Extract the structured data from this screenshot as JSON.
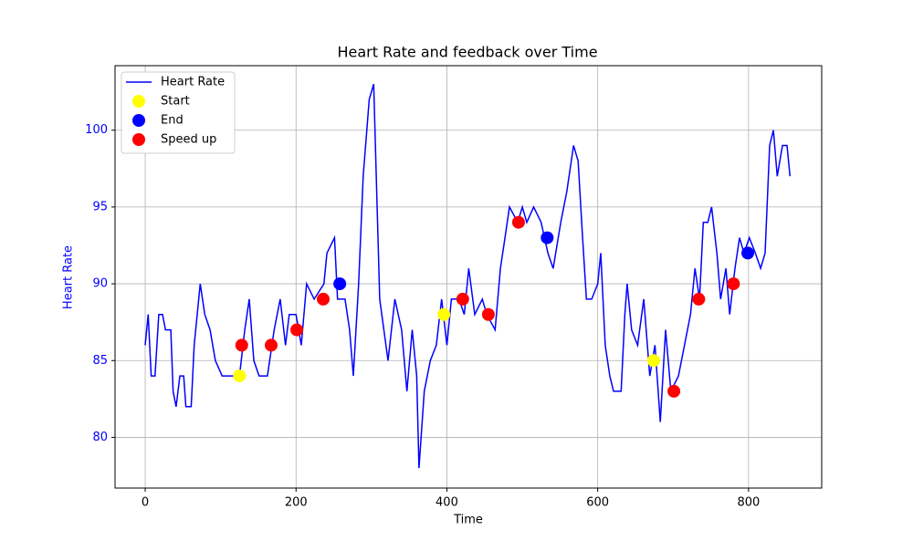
{
  "chart_data": {
    "type": "line",
    "title": "Heart Rate and feedback over Time",
    "x_label": "Time",
    "y_label": "Heart Rate",
    "xlim": [
      -40,
      897
    ],
    "ylim": [
      76.7,
      104.2
    ],
    "xticks": [
      0,
      200,
      400,
      600,
      800
    ],
    "yticks": [
      80,
      85,
      90,
      95,
      100
    ],
    "grid": true,
    "legend": "upper left",
    "y_axis_color": "#0000ff",
    "series": [
      {
        "name": "Heart Rate",
        "type": "line",
        "color": "#0000ff",
        "x": [
          0,
          4,
          8,
          13,
          18,
          23,
          27,
          34,
          37,
          41,
          46,
          51,
          54,
          61,
          65,
          73,
          79,
          86,
          93,
          102,
          116,
          125,
          132,
          138,
          144,
          151,
          162,
          171,
          179,
          186,
          191,
          200,
          207,
          214,
          224,
          237,
          241,
          251,
          255,
          265,
          271,
          276,
          283,
          289,
          297,
          303,
          311,
          322,
          331,
          340,
          347,
          354,
          360,
          363,
          370,
          378,
          386,
          393,
          400,
          406,
          416,
          423,
          429,
          437,
          447,
          453,
          464,
          471,
          477,
          483,
          494,
          500,
          506,
          515,
          525,
          534,
          541,
          551,
          559,
          568,
          574,
          580,
          585,
          592,
          600,
          604,
          610,
          616,
          621,
          631,
          636,
          639,
          645,
          653,
          661,
          669,
          676,
          683,
          690,
          697,
          707,
          715,
          723,
          729,
          735,
          740,
          746,
          751,
          758,
          763,
          770,
          775,
          782,
          788,
          794,
          801,
          809,
          816,
          822,
          828,
          833,
          838,
          845,
          851,
          855
        ],
        "values": [
          86,
          88,
          84,
          84,
          88,
          88,
          87,
          87,
          83,
          82,
          84,
          84,
          82,
          82,
          86,
          90,
          88,
          87,
          85,
          84,
          84,
          84,
          87,
          89,
          85,
          84,
          84,
          87,
          89,
          86,
          88,
          88,
          86,
          90,
          89,
          90,
          92,
          93,
          89,
          89,
          87,
          84,
          90,
          97,
          102,
          103,
          89,
          85,
          89,
          87,
          83,
          87,
          84,
          78,
          83,
          85,
          86,
          89,
          86,
          89,
          89,
          88,
          91,
          88,
          89,
          88,
          87,
          91,
          93,
          95,
          94,
          95,
          94,
          95,
          94,
          92,
          91,
          94,
          96,
          99,
          98,
          93,
          89,
          89,
          90,
          92,
          86,
          84,
          83,
          83,
          88,
          90,
          87,
          86,
          89,
          84,
          86,
          81,
          87,
          83,
          84,
          86,
          88,
          91,
          89,
          94,
          94,
          95,
          92,
          89,
          91,
          88,
          91,
          93,
          92,
          93,
          92,
          91,
          92,
          99,
          100,
          97,
          99,
          99,
          97
        ]
      },
      {
        "name": "Start",
        "type": "scatter",
        "color": "#ffff00",
        "x": [
          125,
          396,
          674
        ],
        "values": [
          84,
          88,
          85
        ]
      },
      {
        "name": "End",
        "type": "scatter",
        "color": "#0000ff",
        "x": [
          258,
          533,
          799
        ],
        "values": [
          90,
          93,
          92
        ]
      },
      {
        "name": "Speed up",
        "type": "scatter",
        "color": "#ff0000",
        "x": [
          128,
          167,
          201,
          236,
          421,
          455,
          495,
          701,
          734,
          780
        ],
        "values": [
          86,
          86,
          87,
          89,
          89,
          88,
          94,
          83,
          89,
          90
        ]
      }
    ]
  }
}
